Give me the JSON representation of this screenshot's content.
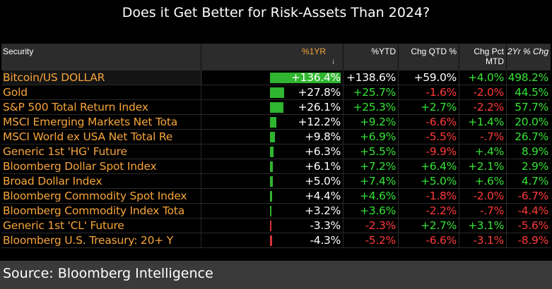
{
  "title": "Does it Get Better for Risk-Assets Than 2024?",
  "columns": {
    "security": "Security",
    "ytd1": "%1YR",
    "ytd": "%YTD",
    "qtd": "Chg QTD %",
    "mtd_line1": "Chg Pct",
    "mtd_line2": "MTD",
    "two_yr": "2Yr % Chg"
  },
  "rows": [
    {
      "security": "Bitcoin/US DOLLAR",
      "yr1": "+136.4%",
      "ytd": "+138.6%",
      "qtd": "+59.0%",
      "mtd": "+4.0%",
      "yr2": "498.2%",
      "bar_pct": 1.0,
      "c_ytd": "w",
      "c_qtd": "w",
      "c_mtd": "g",
      "c_yr2": "g"
    },
    {
      "security": "Gold",
      "yr1": "+27.8%",
      "ytd": "+25.7%",
      "qtd": "-1.6%",
      "mtd": "-2.0%",
      "yr2": "44.5%",
      "bar_pct": 0.2038,
      "c_ytd": "g",
      "c_qtd": "r",
      "c_mtd": "r",
      "c_yr2": "g"
    },
    {
      "security": "S&P 500 Total Return Index",
      "yr1": "+26.1%",
      "ytd": "+25.3%",
      "qtd": "+2.7%",
      "mtd": "-2.2%",
      "yr2": "57.7%",
      "bar_pct": 0.1913,
      "c_ytd": "g",
      "c_qtd": "g",
      "c_mtd": "r",
      "c_yr2": "g"
    },
    {
      "security": "MSCI Emerging Markets Net Tota",
      "yr1": "+12.2%",
      "ytd": "+9.2%",
      "qtd": "-6.6%",
      "mtd": "+1.4%",
      "yr2": "20.0%",
      "bar_pct": 0.0894,
      "c_ytd": "g",
      "c_qtd": "r",
      "c_mtd": "g",
      "c_yr2": "g"
    },
    {
      "security": "MSCI World ex USA Net Total Re",
      "yr1": "+9.8%",
      "ytd": "+6.9%",
      "qtd": "-5.5%",
      "mtd": "-.7%",
      "yr2": "26.7%",
      "bar_pct": 0.0718,
      "c_ytd": "g",
      "c_qtd": "r",
      "c_mtd": "r",
      "c_yr2": "g"
    },
    {
      "security": "Generic 1st 'HG' Future",
      "yr1": "+6.3%",
      "ytd": "+5.5%",
      "qtd": "-9.9%",
      "mtd": "+.4%",
      "yr2": "8.9%",
      "bar_pct": 0.0462,
      "c_ytd": "g",
      "c_qtd": "r",
      "c_mtd": "g",
      "c_yr2": "g"
    },
    {
      "security": "Bloomberg Dollar Spot Index",
      "yr1": "+6.1%",
      "ytd": "+7.2%",
      "qtd": "+6.4%",
      "mtd": "+2.1%",
      "yr2": "2.9%",
      "bar_pct": 0.0447,
      "c_ytd": "g",
      "c_qtd": "g",
      "c_mtd": "g",
      "c_yr2": "g"
    },
    {
      "security": "Broad Dollar Index",
      "yr1": "+5.0%",
      "ytd": "+7.4%",
      "qtd": "+5.0%",
      "mtd": "+.6%",
      "yr2": "4.7%",
      "bar_pct": 0.0367,
      "c_ytd": "g",
      "c_qtd": "g",
      "c_mtd": "g",
      "c_yr2": "g"
    },
    {
      "security": "Bloomberg Commodity Spot Index",
      "yr1": "+4.4%",
      "ytd": "+4.6%",
      "qtd": "-1.8%",
      "mtd": "-2.0%",
      "yr2": "-6.7%",
      "bar_pct": 0.0323,
      "c_ytd": "g",
      "c_qtd": "r",
      "c_mtd": "r",
      "c_yr2": "r"
    },
    {
      "security": "Bloomberg Commodity Index Tota",
      "yr1": "+3.2%",
      "ytd": "+3.6%",
      "qtd": "-2.2%",
      "mtd": "-.7%",
      "yr2": "-4.4%",
      "bar_pct": 0.0235,
      "c_ytd": "g",
      "c_qtd": "r",
      "c_mtd": "r",
      "c_yr2": "r"
    },
    {
      "security": "Generic 1st 'CL' Future",
      "yr1": "-3.3%",
      "ytd": "-2.3%",
      "qtd": "+2.7%",
      "mtd": "+3.1%",
      "yr2": "-5.6%",
      "bar_pct": -0.0242,
      "c_ytd": "r",
      "c_qtd": "g",
      "c_mtd": "g",
      "c_yr2": "r"
    },
    {
      "security": "Bloomberg U.S. Treasury: 20+ Y",
      "yr1": "-4.3%",
      "ytd": "-5.2%",
      "qtd": "-6.6%",
      "mtd": "-3.1%",
      "yr2": "-8.9%",
      "bar_pct": -0.0315,
      "c_ytd": "r",
      "c_qtd": "r",
      "c_mtd": "r",
      "c_yr2": "r"
    }
  ],
  "colors": {
    "positive": "#35e335",
    "negative": "#ff3a3a",
    "security": "#f7a53a",
    "bar_pos": "#2fb52f",
    "bar_neg": "#d9333a",
    "header_bg": "#2c2c2c",
    "source_bg": "#3a3a3a"
  },
  "icons": {
    "sort": "down-arrow-icon"
  },
  "source": "Source: Bloomberg Intelligence"
}
